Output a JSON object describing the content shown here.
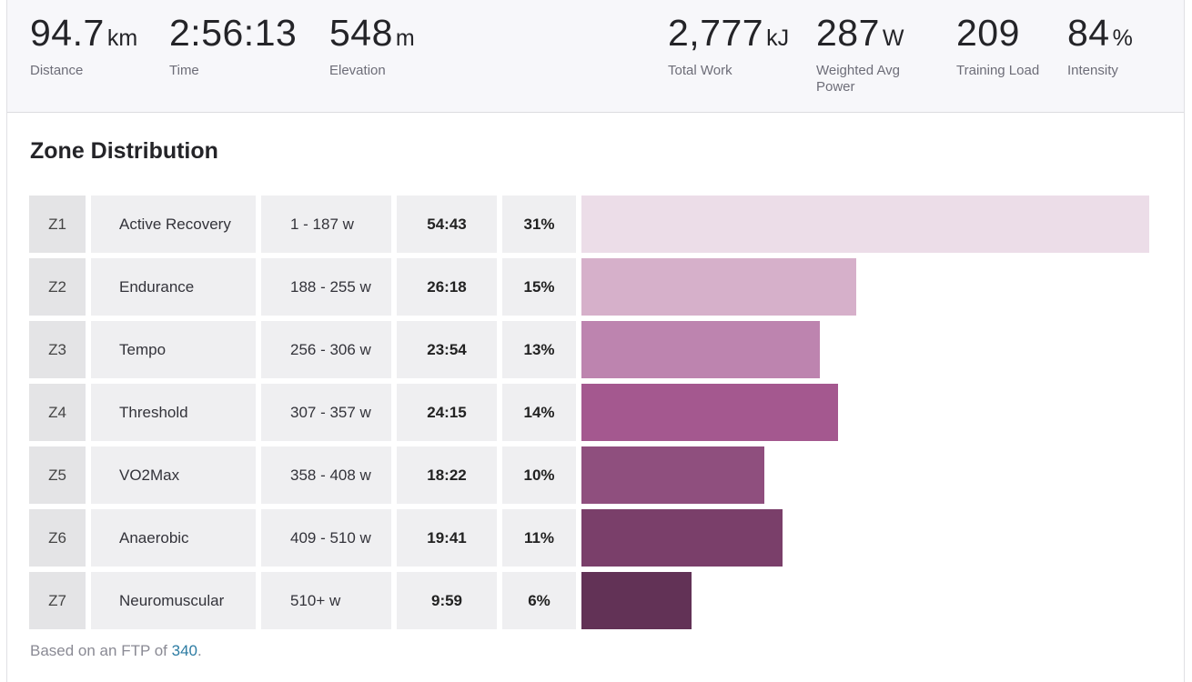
{
  "stats": {
    "distance": {
      "value": "94.7",
      "unit": "km",
      "label": "Distance"
    },
    "time": {
      "value": "2:56:13",
      "unit": "",
      "label": "Time"
    },
    "elevation": {
      "value": "548",
      "unit": "m",
      "label": "Elevation"
    },
    "total_work": {
      "value": "2,777",
      "unit": "kJ",
      "label": "Total Work"
    },
    "weighted_avg_power": {
      "value": "287",
      "unit": "W",
      "label_line1": "Weighted Avg",
      "label_line2": "Power"
    },
    "training_load": {
      "value": "209",
      "unit": "",
      "label": "Training Load"
    },
    "intensity": {
      "value": "84",
      "unit": "%",
      "label": "Intensity"
    }
  },
  "zone_distribution": {
    "title": "Zone Distribution",
    "zones": [
      {
        "zone": "Z1",
        "name": "Active Recovery",
        "range": "1 - 187 w",
        "time": "54:43",
        "percent_label": "31%",
        "percent": 31,
        "color": "#ecdde8"
      },
      {
        "zone": "Z2",
        "name": "Endurance",
        "range": "188 - 255 w",
        "time": "26:18",
        "percent_label": "15%",
        "percent": 15,
        "color": "#d6b0ca"
      },
      {
        "zone": "Z3",
        "name": "Tempo",
        "range": "256 - 306 w",
        "time": "23:54",
        "percent_label": "13%",
        "percent": 13,
        "color": "#bd84af"
      },
      {
        "zone": "Z4",
        "name": "Threshold",
        "range": "307 - 357 w",
        "time": "24:15",
        "percent_label": "14%",
        "percent": 14,
        "color": "#a4588f"
      },
      {
        "zone": "Z5",
        "name": "VO2Max",
        "range": "358 - 408 w",
        "time": "18:22",
        "percent_label": "10%",
        "percent": 10,
        "color": "#8f4f7e"
      },
      {
        "zone": "Z6",
        "name": "Anaerobic",
        "range": "409 - 510 w",
        "time": "19:41",
        "percent_label": "11%",
        "percent": 11,
        "color": "#7a3f6a"
      },
      {
        "zone": "Z7",
        "name": "Neuromuscular",
        "range": "510+ w",
        "time": "9:59",
        "percent_label": "6%",
        "percent": 6,
        "color": "#623256"
      }
    ],
    "footnote": {
      "prefix": "Based on an FTP of ",
      "ftp": "340",
      "suffix": "."
    }
  }
}
